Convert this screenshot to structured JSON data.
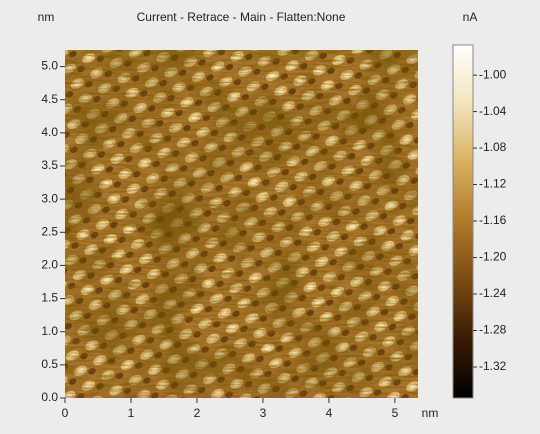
{
  "chart_data": {
    "type": "image",
    "title": "Current  -  Retrace  -  Main  -  Flatten:None",
    "x_label": "nm",
    "y_label": "nm",
    "colorbar_label": "nA",
    "xlim": [
      0,
      5.35
    ],
    "ylim": [
      0,
      5.25
    ],
    "xticks": [
      0,
      1,
      2,
      3,
      4,
      5
    ],
    "yticks": [
      {
        "value": 0,
        "label": "0.0"
      },
      0.5,
      {
        "value": 1,
        "label": "1.0"
      },
      1.5,
      {
        "value": 2,
        "label": "2.0"
      },
      2.5,
      {
        "value": 3,
        "label": "3.0"
      },
      3.5,
      {
        "value": 4,
        "label": "4.0"
      },
      4.5,
      {
        "value": 5,
        "label": "5.0"
      }
    ],
    "clim": [
      -1.354,
      -0.967
    ],
    "cticks": [
      {
        "value": -1,
        "label": "-1.00"
      },
      -1.04,
      -1.08,
      -1.12,
      -1.16,
      {
        "value": -1.2,
        "label": "-1.20"
      },
      -1.24,
      -1.28,
      -1.32
    ],
    "colormap": [
      "#000000",
      "#3a1a05",
      "#7a4a12",
      "#b07a2a",
      "#d8b060",
      "#f4e4bc",
      "#ffffff"
    ]
  }
}
